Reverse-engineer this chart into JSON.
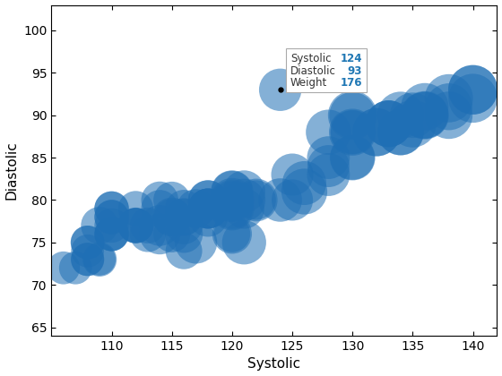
{
  "systolic": [
    124,
    109,
    125,
    117,
    122,
    121,
    130,
    115,
    115,
    118,
    114,
    120,
    109,
    120,
    116,
    109,
    126,
    116,
    128,
    114,
    120,
    124,
    126,
    125,
    121,
    121,
    120,
    118,
    122,
    120,
    118,
    120,
    121,
    120,
    116,
    132,
    130,
    128,
    130,
    130,
    134,
    134,
    130,
    132,
    133,
    130,
    128,
    133,
    128,
    130,
    133,
    136,
    134,
    135,
    136,
    136,
    135,
    140,
    136,
    138,
    138,
    138,
    140,
    140,
    110,
    115,
    113,
    112,
    108,
    108,
    107,
    112,
    112,
    110,
    106,
    110,
    110,
    114,
    108,
    108,
    113,
    110,
    110,
    112,
    108,
    112,
    114,
    110,
    110,
    116,
    118,
    116,
    117,
    118,
    116,
    115,
    118,
    118,
    120,
    120
  ],
  "diastolic": [
    93,
    77,
    83,
    75,
    80,
    75,
    90,
    78,
    76,
    79,
    76,
    76,
    73,
    76,
    74,
    73,
    81,
    77,
    83,
    77,
    80,
    80,
    82,
    80,
    79,
    80,
    79,
    78,
    80,
    80,
    79,
    81,
    81,
    79,
    76,
    88,
    90,
    88,
    88,
    85,
    90,
    88,
    85,
    88,
    89,
    88,
    85,
    89,
    84,
    88,
    89,
    90,
    88,
    89,
    90,
    91,
    90,
    93,
    90,
    90,
    92,
    91,
    92,
    93,
    79,
    80,
    77,
    77,
    74,
    75,
    72,
    77,
    77,
    76,
    72,
    77,
    76,
    80,
    73,
    75,
    76,
    76,
    78,
    79,
    73,
    77,
    79,
    78,
    79,
    79,
    79,
    78,
    79,
    79,
    78,
    78,
    80,
    80,
    80,
    81
  ],
  "weight": [
    176,
    136,
    174,
    176,
    153,
    190,
    209,
    149,
    133,
    158,
    164,
    130,
    102,
    154,
    131,
    115,
    206,
    138,
    180,
    164,
    141,
    185,
    189,
    167,
    160,
    178,
    164,
    153,
    179,
    190,
    158,
    176,
    176,
    188,
    140,
    228,
    235,
    199,
    216,
    202,
    218,
    210,
    192,
    225,
    211,
    185,
    179,
    215,
    173,
    195,
    212,
    228,
    206,
    221,
    215,
    220,
    202,
    240,
    212,
    220,
    228,
    215,
    235,
    238,
    116,
    133,
    126,
    119,
    106,
    111,
    106,
    126,
    119,
    116,
    106,
    116,
    112,
    135,
    108,
    111,
    128,
    116,
    116,
    121,
    107,
    121,
    135,
    115,
    116,
    137,
    158,
    139,
    147,
    157,
    132,
    128,
    155,
    152,
    163,
    168
  ],
  "tooltip_x": 124,
  "tooltip_y": 93,
  "tooltip_weight": 176,
  "xlim": [
    105,
    142
  ],
  "ylim": [
    64,
    103
  ],
  "xticks": [
    110,
    115,
    120,
    125,
    130,
    135,
    140
  ],
  "yticks": [
    65,
    70,
    75,
    80,
    85,
    90,
    95,
    100
  ],
  "xlabel": "Systolic",
  "ylabel": "Diastolic",
  "bubble_color_dark": "#1F6FB5",
  "bubble_color_light": "#4EA6DC",
  "bubble_alpha": 0.55,
  "bubble_scale": 2.2
}
